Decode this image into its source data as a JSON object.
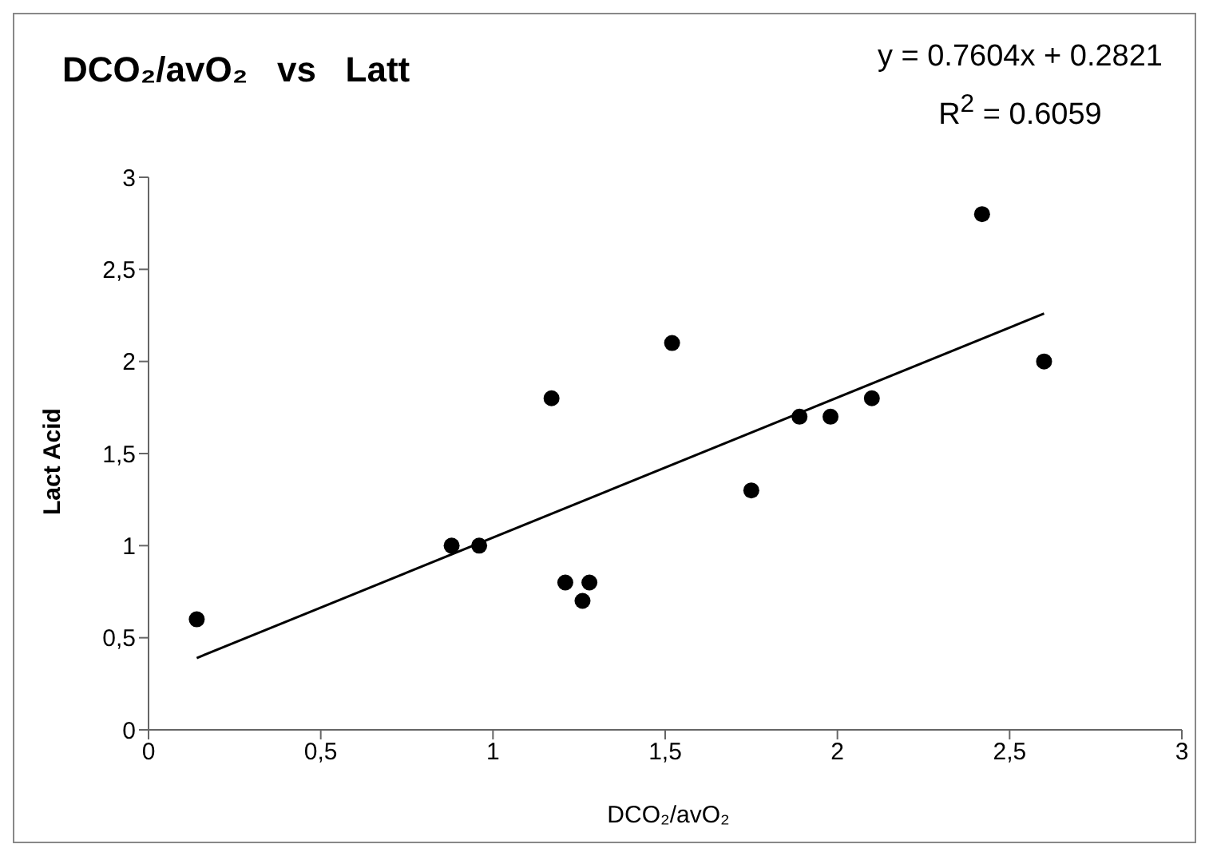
{
  "chart_data": {
    "type": "scatter",
    "title": "DCO₂/avO₂   vs   Latt",
    "xlabel": "DCO₂/avO₂",
    "ylabel": "Lact Acid",
    "annotations": [
      "y = 0.7604x + 0.2821",
      "R$^{2}$ = 0.6059"
    ],
    "series": [
      {
        "color": "#000000",
        "marker": "circle",
        "x": [
          0.14,
          0.88,
          0.96,
          1.17,
          1.21,
          1.26,
          1.28,
          1.52,
          1.75,
          1.89,
          1.98,
          2.1,
          2.42,
          2.6
        ],
        "values": [
          0.6,
          1.0,
          1.0,
          1.8,
          0.8,
          0.7,
          0.8,
          2.1,
          1.3,
          1.7,
          1.7,
          1.8,
          2.8,
          2.0
        ]
      },
      {
        "type": "line",
        "color": "#000000",
        "marker": "none",
        "x": [
          0.14,
          2.6
        ],
        "values": [
          0.39,
          2.26
        ]
      }
    ],
    "xlim": [
      0,
      3
    ],
    "xticks": [
      0,
      {
        "value": 0.5,
        "label": "0,5"
      },
      1,
      {
        "value": 1.5,
        "label": "1,5"
      },
      2,
      {
        "value": 2.5,
        "label": "2,5"
      },
      3
    ],
    "ylim": [
      0,
      3
    ],
    "yticks": [
      0,
      {
        "value": 0.5,
        "label": "0,5"
      },
      1,
      {
        "value": 1.5,
        "label": "1,5"
      },
      2,
      {
        "value": 2.5,
        "label": "2,5"
      },
      3
    ],
    "grid": false,
    "legend": false
  }
}
